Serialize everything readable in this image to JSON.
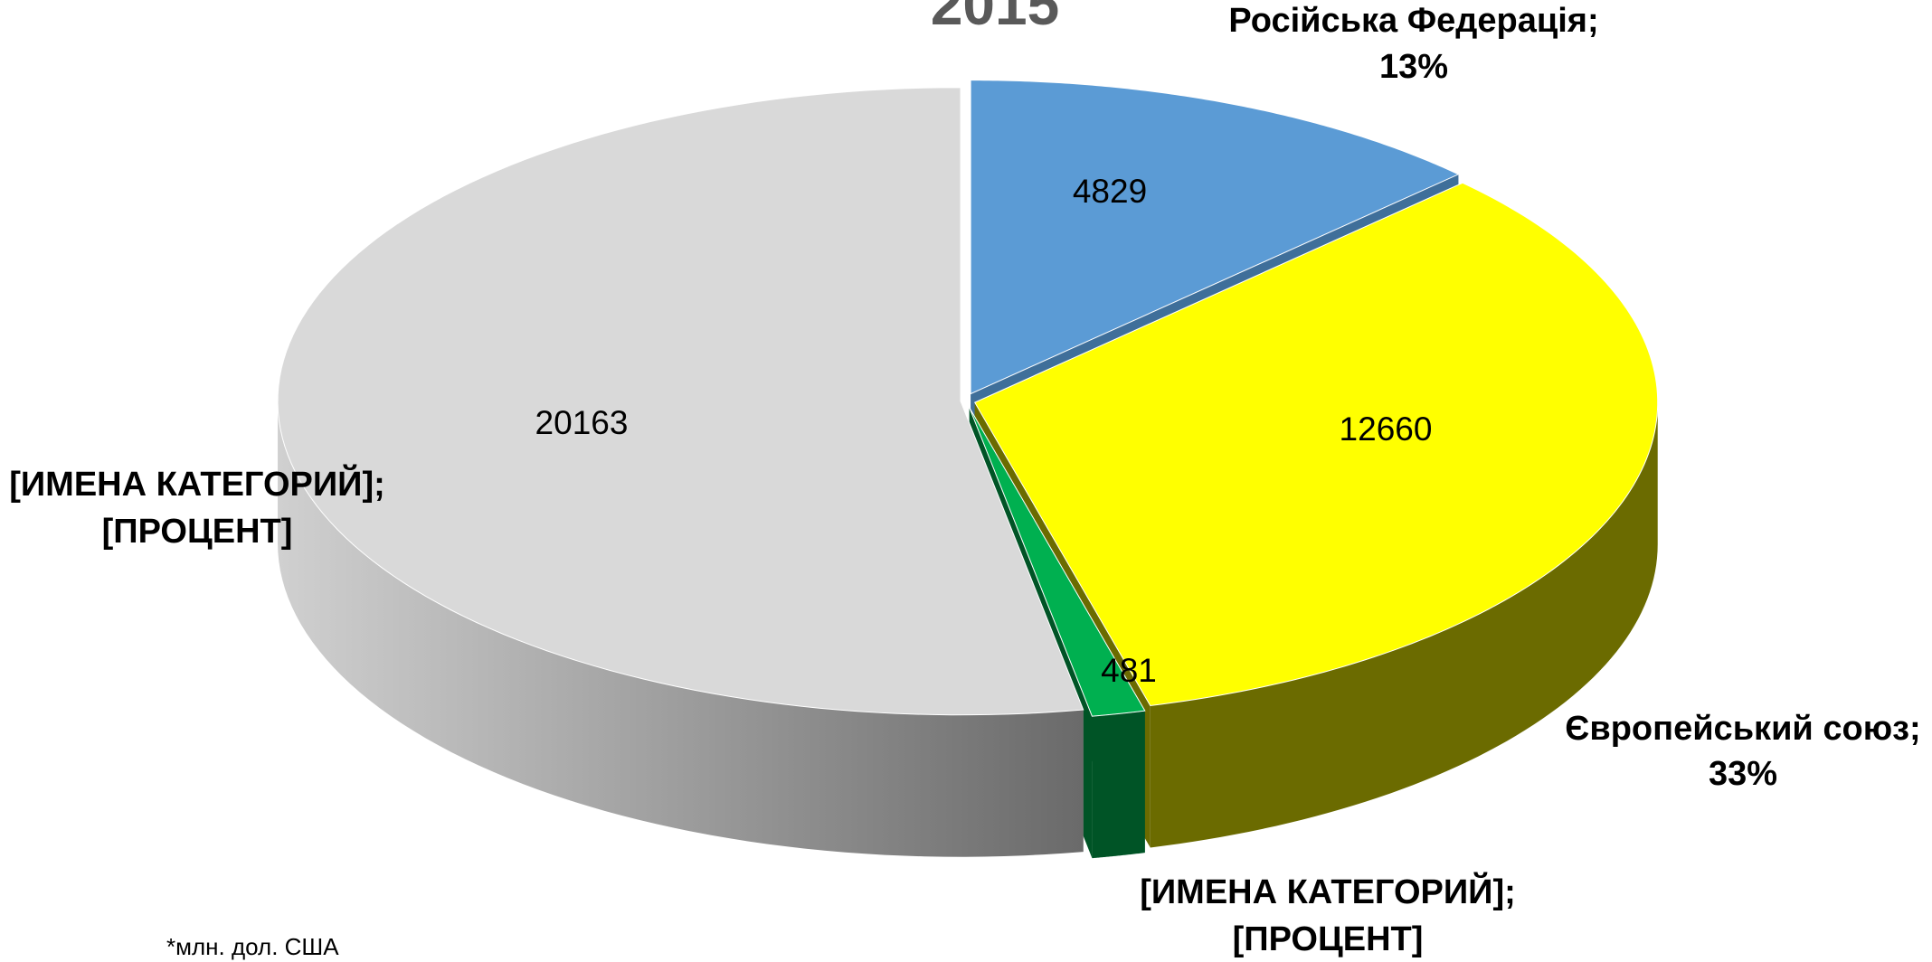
{
  "chart_data": {
    "type": "pie",
    "title": "2015",
    "labels": [
      "Російська Федерація;",
      "Європейський союз;",
      "[ИМЕНА КАТЕГОРИЙ];",
      "[ИМЕНА КАТЕГОРИЙ];"
    ],
    "percent_labels": [
      "13%",
      "33%",
      "[ПРОЦЕНТ]",
      "[ПРОЦЕНТ]"
    ],
    "values": [
      4829,
      12660,
      481,
      20163
    ],
    "colors": [
      "#5b9bd5",
      "#ffff00",
      "#00b050",
      "#d9d9d9"
    ],
    "side_colors": [
      "#3f6f9a",
      "#6b6b00",
      "#005426",
      "#9a9a9a"
    ],
    "footnote": "*млн. дол. США"
  }
}
